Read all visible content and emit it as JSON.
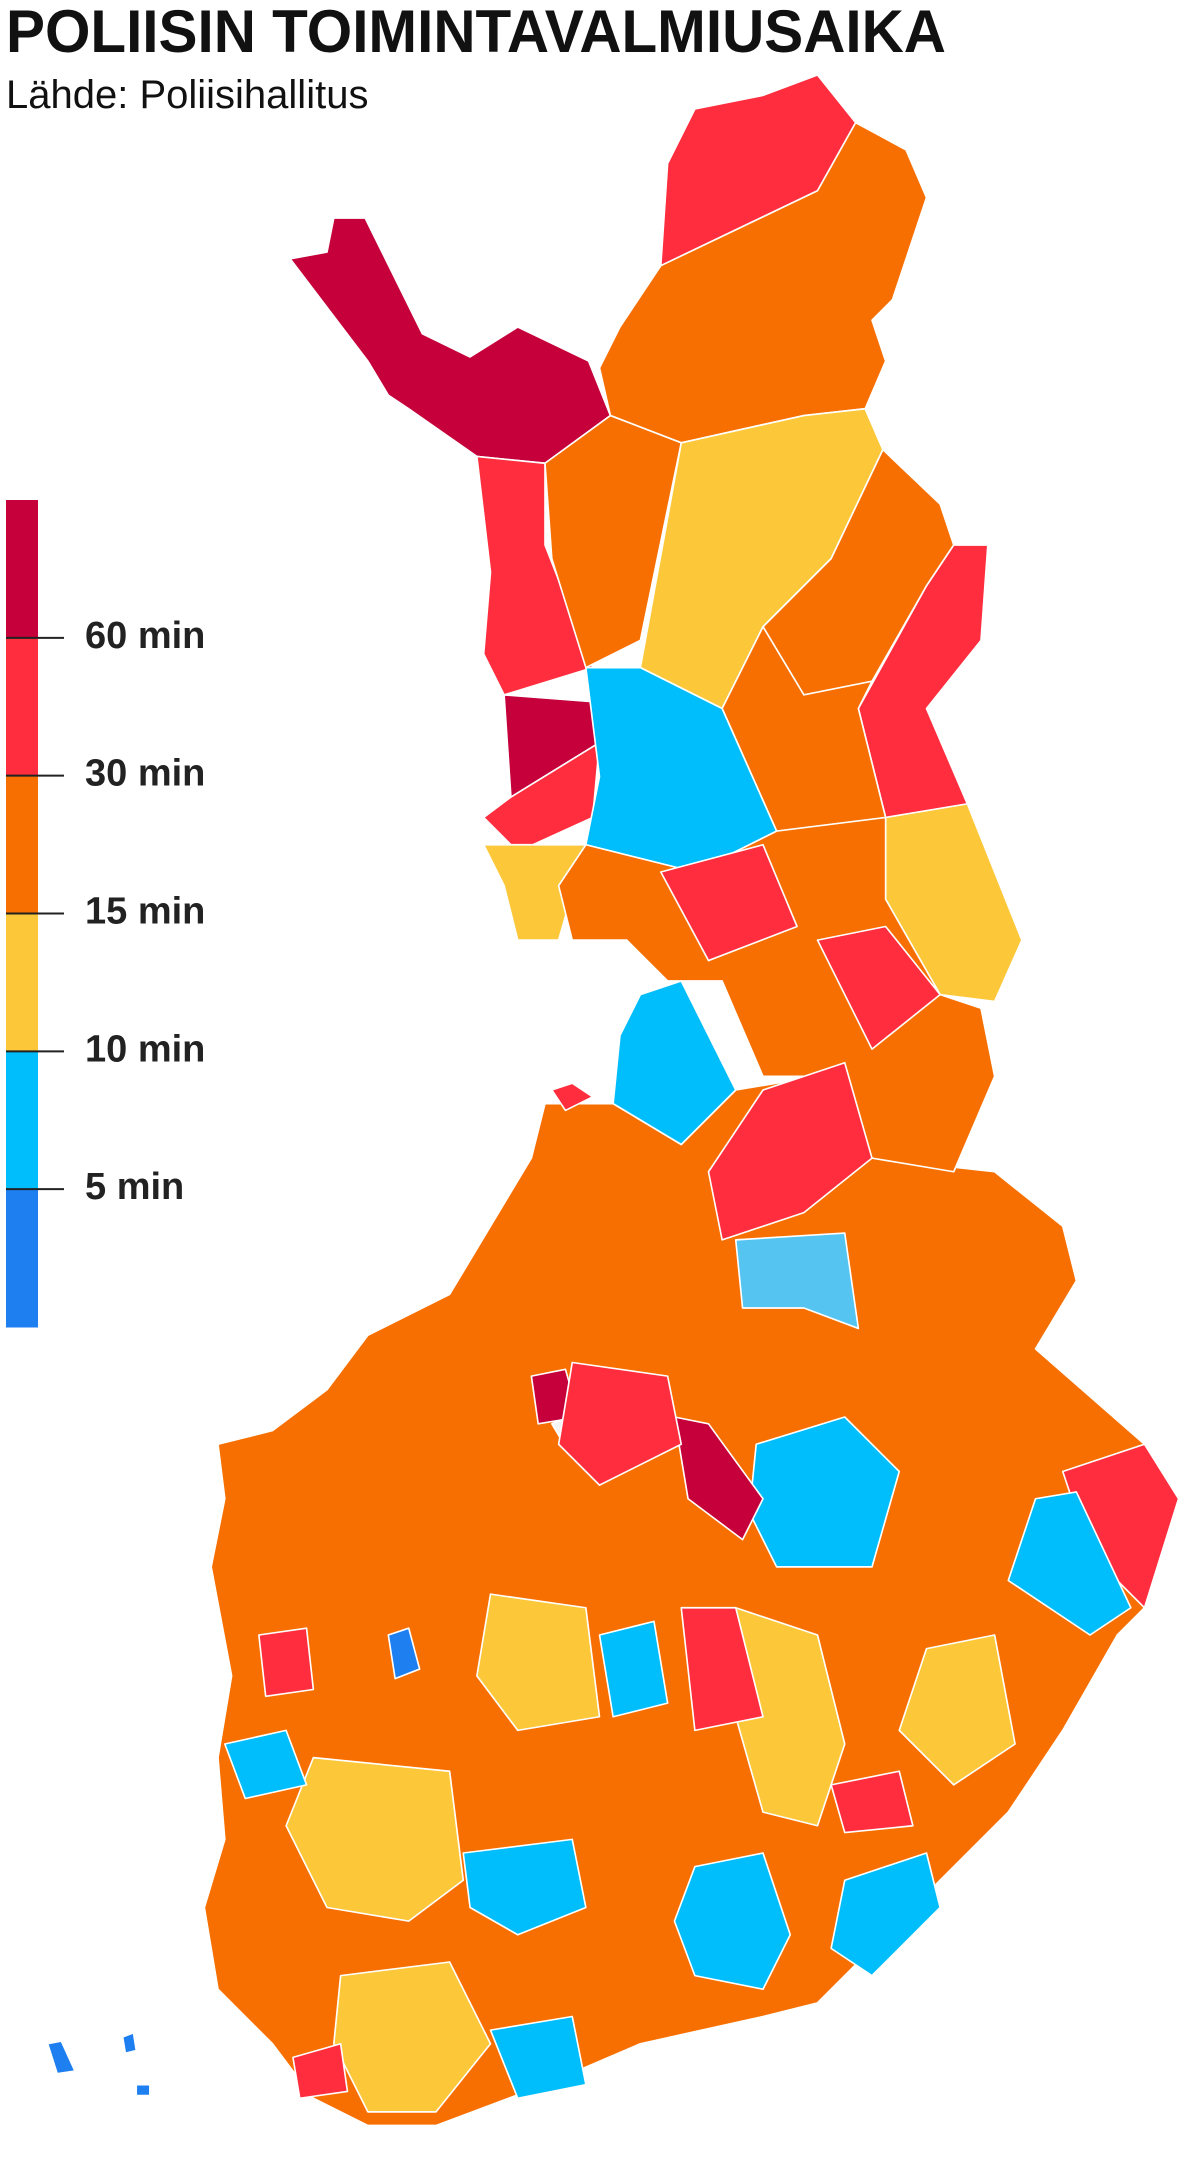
{
  "header": {
    "title": "POLIISIN TOIMINTAVALMIUSAIKA",
    "subtitle": "Lähde: Poliisihallitus"
  },
  "legend": {
    "colors": [
      "#c5003a",
      "#ff2d3d",
      "#f76f00",
      "#fcc83a",
      "#00bdfc",
      "#1d7ff0"
    ],
    "ticks": [
      {
        "value": 60,
        "label": "60 min"
      },
      {
        "value": 30,
        "label": "30 min"
      },
      {
        "value": 15,
        "label": "15 min"
      },
      {
        "value": 10,
        "label": "10 min"
      },
      {
        "value": 5,
        "label": "5 min"
      }
    ]
  }
}
